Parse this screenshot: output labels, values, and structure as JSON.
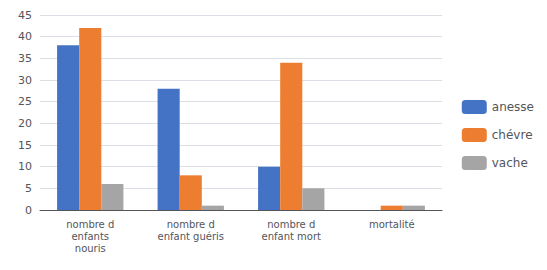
{
  "chart_data": {
    "type": "bar",
    "categories": [
      "nombre d\nenfants\nnouris",
      "nombre d\nenfant guéris",
      "nombre d\nenfant mort",
      "mortalité"
    ],
    "series": [
      {
        "name": "anesse",
        "color": "#4472C4",
        "values": [
          38,
          28,
          10,
          0
        ]
      },
      {
        "name": "chévre",
        "color": "#ED7D31",
        "values": [
          42,
          8,
          34,
          1
        ]
      },
      {
        "name": "vache",
        "color": "#A5A5A5",
        "values": [
          6,
          1,
          5,
          1
        ]
      }
    ],
    "ylim": [
      0,
      45
    ],
    "yticks": [
      0,
      5,
      10,
      15,
      20,
      25,
      30,
      35,
      40,
      45
    ],
    "grid": true,
    "legend": "right"
  }
}
